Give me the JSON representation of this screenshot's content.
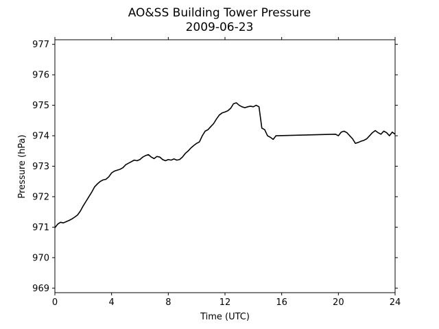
{
  "chart_data": {
    "type": "line",
    "title": "AO&SS Building Tower Pressure",
    "subtitle": "2009-06-23",
    "xlabel": "Time (UTC)",
    "ylabel": "Pressure (hPa)",
    "xlim": [
      0,
      24
    ],
    "ylim": [
      968.85,
      977.15
    ],
    "xticks": [
      0,
      4,
      8,
      12,
      16,
      20,
      24
    ],
    "yticks": [
      969,
      970,
      971,
      972,
      973,
      974,
      975,
      976,
      977
    ],
    "grid": false,
    "legend": "none",
    "line_color": "#000000",
    "series": [
      {
        "x": [
          0,
          0.2,
          0.4,
          0.6,
          0.8,
          1.0,
          1.2,
          1.4,
          1.6,
          1.8,
          2.0,
          2.2,
          2.4,
          2.6,
          2.8,
          3.0,
          3.2,
          3.4,
          3.6,
          3.8,
          4.0,
          4.2,
          4.4,
          4.6,
          4.8,
          5.0,
          5.2,
          5.4,
          5.6,
          5.8,
          6.0,
          6.2,
          6.4,
          6.6,
          6.8,
          7.0,
          7.2,
          7.4,
          7.6,
          7.8,
          8.0,
          8.2,
          8.4,
          8.6,
          8.8,
          9.0,
          9.2,
          9.4,
          9.6,
          9.8,
          10.0,
          10.2,
          10.4,
          10.6,
          10.8,
          11.0,
          11.2,
          11.4,
          11.6,
          11.8,
          12.0,
          12.2,
          12.4,
          12.6,
          12.8,
          13.0,
          13.2,
          13.4,
          13.6,
          13.8,
          14.0,
          14.2,
          14.4,
          14.6,
          14.8,
          15.0,
          15.2,
          15.4,
          15.6,
          19.8,
          20.0,
          20.2,
          20.4,
          20.6,
          20.8,
          21.0,
          21.2,
          21.4,
          21.6,
          21.8,
          22.0,
          22.2,
          22.4,
          22.6,
          22.8,
          23.0,
          23.2,
          23.4,
          23.6,
          23.8,
          24.0
        ],
        "values": [
          970.98,
          971.1,
          971.16,
          971.14,
          971.18,
          971.22,
          971.27,
          971.33,
          971.4,
          971.53,
          971.7,
          971.85,
          972.0,
          972.15,
          972.32,
          972.42,
          972.5,
          972.55,
          972.57,
          972.65,
          972.78,
          972.84,
          972.87,
          972.9,
          972.95,
          973.05,
          973.1,
          973.15,
          973.2,
          973.18,
          973.22,
          973.3,
          973.35,
          973.38,
          973.3,
          973.25,
          973.32,
          973.3,
          973.22,
          973.18,
          973.22,
          973.2,
          973.24,
          973.2,
          973.22,
          973.3,
          973.42,
          973.5,
          973.6,
          973.68,
          973.75,
          973.8,
          974.0,
          974.15,
          974.2,
          974.3,
          974.4,
          974.55,
          974.68,
          974.75,
          974.78,
          974.82,
          974.9,
          975.05,
          975.08,
          975.0,
          974.95,
          974.92,
          974.95,
          974.97,
          974.95,
          975.0,
          974.95,
          974.25,
          974.2,
          974.0,
          973.95,
          973.88,
          974.0,
          974.05,
          974.0,
          974.12,
          974.15,
          974.1,
          974.0,
          973.9,
          973.75,
          973.78,
          973.82,
          973.85,
          973.9,
          974.0,
          974.1,
          974.17,
          974.1,
          974.05,
          974.15,
          974.1,
          974.0,
          974.12,
          974.05
        ]
      }
    ]
  }
}
